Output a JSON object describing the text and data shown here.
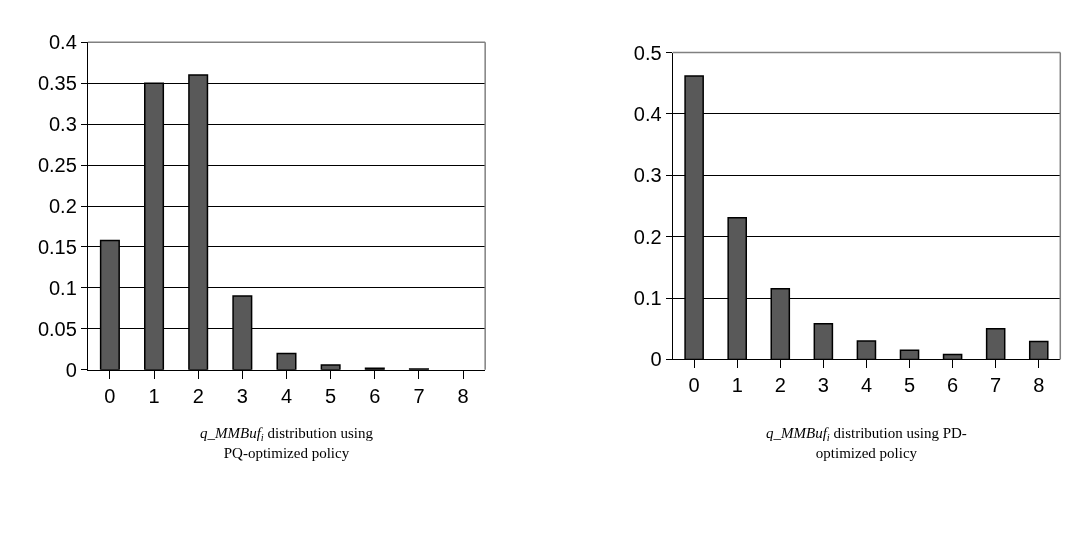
{
  "chart_data": [
    {
      "type": "bar",
      "title": "q_MMBuf$_{i}$ distribution using\nPQ-optimized policy",
      "categories": [
        "0",
        "1",
        "2",
        "3",
        "4",
        "5",
        "6",
        "7",
        "8"
      ],
      "values": [
        0.158,
        0.35,
        0.36,
        0.09,
        0.02,
        0.006,
        0.002,
        0.001,
        0
      ],
      "color": "#595959",
      "ylim": [
        0,
        0.4
      ],
      "yticks": [
        0,
        0.05,
        0.1,
        0.15,
        0.2,
        0.25,
        0.3,
        0.35,
        0.4
      ],
      "grid": "y"
    },
    {
      "type": "bar",
      "title": "q_MMBuf$_{i}$ distribution using PD-\noptimized policy",
      "categories": [
        "0",
        "1",
        "2",
        "3",
        "4",
        "5",
        "6",
        "7",
        "8"
      ],
      "values": [
        0.462,
        0.231,
        0.115,
        0.058,
        0.03,
        0.015,
        0.008,
        0.05,
        0.029
      ],
      "color": "#595959",
      "ylim": [
        0,
        0.5
      ],
      "yticks": [
        0,
        0.1,
        0.2,
        0.3,
        0.4,
        0.5
      ],
      "grid": "y"
    }
  ]
}
